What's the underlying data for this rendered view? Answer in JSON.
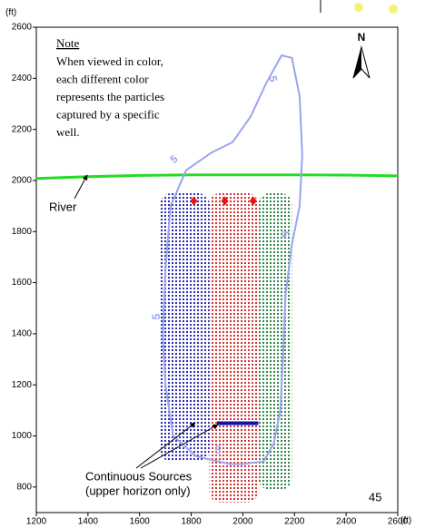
{
  "chart_data": {
    "type": "map",
    "unit_label": "(ft)",
    "xlim": [
      1200,
      2600
    ],
    "ylim": [
      700,
      2600
    ],
    "xticks": [
      1200,
      1400,
      1600,
      1800,
      2000,
      2200,
      2400,
      2600
    ],
    "yticks": [
      800,
      1000,
      1200,
      1400,
      1600,
      1800,
      2000,
      2200,
      2400,
      2600
    ],
    "grid": false,
    "note": {
      "title": "Note",
      "lines": [
        "When viewed in color,",
        "each different color",
        "represents the particles",
        "captured by a specific",
        "well."
      ]
    },
    "north_label": "N",
    "river": {
      "name": "River",
      "color": "#22dd22",
      "x": [
        1200,
        1400,
        1600,
        1800,
        2000,
        2200,
        2400,
        2600
      ],
      "y": [
        2008,
        2015,
        2020,
        2022,
        2022,
        2022,
        2021,
        2018
      ]
    },
    "contour": {
      "label": "5",
      "color": "#9aa4f0",
      "x": [
        1950,
        1820,
        1730,
        1700,
        1690,
        1700,
        1720,
        1780,
        1880,
        1960,
        2030,
        2090,
        2150,
        2190,
        2220,
        2230,
        2220,
        2190,
        2165,
        2155,
        2145,
        2120,
        2080,
        2000,
        1950
      ],
      "y": [
        890,
        920,
        1000,
        1200,
        1400,
        1650,
        1900,
        2040,
        2110,
        2150,
        2250,
        2380,
        2490,
        2480,
        2330,
        2100,
        1900,
        1750,
        1550,
        1300,
        1100,
        970,
        900,
        890,
        890
      ]
    },
    "zones": [
      {
        "color": "#1a1aa8",
        "x": [
          1680,
          1870
        ],
        "y": [
          900,
          1950
        ]
      },
      {
        "color": "#cc2222",
        "x": [
          1870,
          2060
        ],
        "y": [
          740,
          1950
        ]
      },
      {
        "color": "#1e7a3a",
        "x": [
          2060,
          2190
        ],
        "y": [
          790,
          1950
        ]
      }
    ],
    "wells": {
      "color": "#ee1111",
      "x": [
        1810,
        1930,
        2040
      ],
      "y": [
        1920,
        1920,
        1920
      ]
    },
    "sources": {
      "label": [
        "Continuous Sources",
        "(upper horizon only)"
      ],
      "color": "#1010aa",
      "x": [
        1900,
        2060
      ],
      "y": 1050
    },
    "panel_number": "45"
  }
}
